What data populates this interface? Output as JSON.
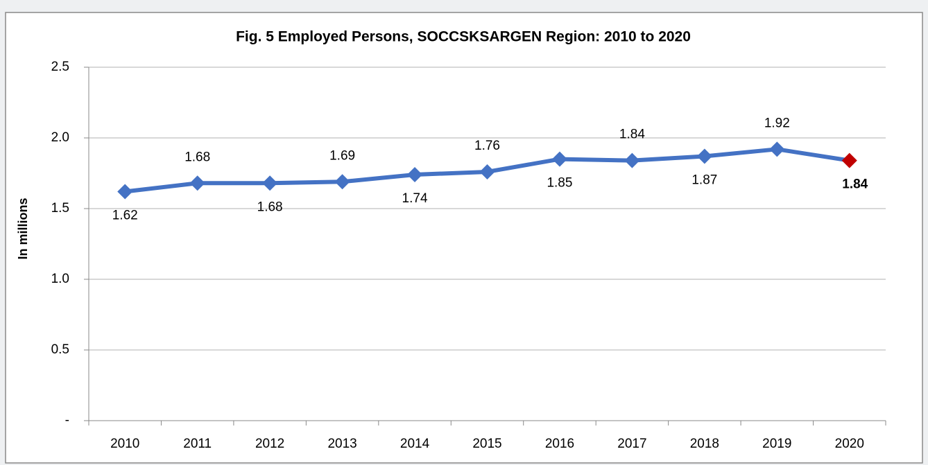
{
  "chart_data": {
    "type": "line",
    "title": "Fig. 5 Employed Persons, SOCCSKSARGEN Region: 2010 to 2020",
    "y_label": "In millions",
    "categories": [
      "2010",
      "2011",
      "2012",
      "2013",
      "2014",
      "2015",
      "2016",
      "2017",
      "2018",
      "2019",
      "2020"
    ],
    "series": [
      {
        "name": "Employed Persons",
        "color": "#4472c4",
        "values": [
          1.62,
          1.68,
          1.68,
          1.69,
          1.74,
          1.76,
          1.85,
          1.84,
          1.87,
          1.92,
          1.84
        ],
        "marker_colors": [
          "#4472c4",
          "#4472c4",
          "#4472c4",
          "#4472c4",
          "#4472c4",
          "#4472c4",
          "#4472c4",
          "#4472c4",
          "#4472c4",
          "#4472c4",
          "#c00000"
        ]
      }
    ],
    "ylim": [
      0,
      2.5
    ],
    "yticks": [
      {
        "value": 0,
        "label": "-"
      },
      0.5,
      {
        "value": 1,
        "label": "1.0"
      },
      1.5,
      {
        "value": 2,
        "label": "2.0"
      },
      2.5
    ],
    "grid": true
  }
}
